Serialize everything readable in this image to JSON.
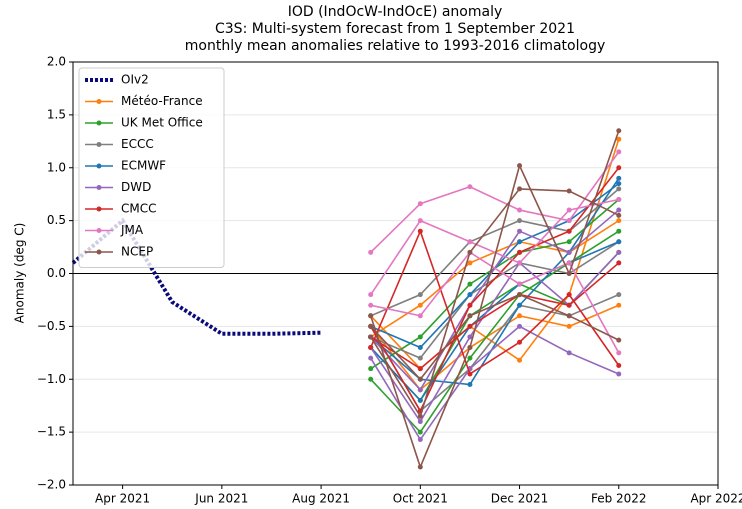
{
  "chart_data": {
    "type": "line",
    "title": "IOD (IndOcW-IndOcE) anomaly",
    "subtitle": "C3S: Multi-system forecast from 1 September 2021",
    "subtitle2": "monthly mean anomalies relative to 1993-2016 climatology",
    "ylabel": "Anomaly (deg C)",
    "xlim": [
      "2021-03",
      "2022-04"
    ],
    "xticks": [
      {
        "value": "2021-04",
        "label": "Apr 2021"
      },
      {
        "value": "2021-06",
        "label": "Jun 2021"
      },
      {
        "value": "2021-08",
        "label": "Aug 2021"
      },
      {
        "value": "2021-10",
        "label": "Oct 2021"
      },
      {
        "value": "2021-12",
        "label": "Dec 2021"
      },
      {
        "value": "2022-02",
        "label": "Feb 2022"
      },
      {
        "value": "2022-04",
        "label": "Apr 2022"
      }
    ],
    "ylim": [
      -2,
      2
    ],
    "yticks": [
      {
        "value": -2,
        "label": "−2.0"
      },
      {
        "value": -1.5,
        "label": "−1.5"
      },
      {
        "value": -1,
        "label": "−1.0"
      },
      {
        "value": -0.5,
        "label": "−0.5"
      },
      {
        "value": 0,
        "label": "0.0"
      },
      {
        "value": 0.5,
        "label": "0.5"
      },
      {
        "value": 1,
        "label": "1.0"
      },
      {
        "value": 1.5,
        "label": "1.5"
      },
      {
        "value": 2,
        "label": "2.0"
      }
    ],
    "grid": true,
    "legend": "upper left",
    "observations": {
      "name": "OIv2",
      "color": "#0a0a7a",
      "x": [
        "2021-03",
        "2021-04",
        "2021-05",
        "2021-06",
        "2021-07",
        "2021-08"
      ],
      "values": [
        0.1,
        0.5,
        -0.27,
        -0.57,
        -0.57,
        -0.56
      ]
    },
    "forecast_x": [
      "2021-09",
      "2021-10",
      "2021-11",
      "2021-12",
      "2022-01",
      "2022-02"
    ],
    "series": [
      {
        "name": "Météo-France",
        "color": "#ff7f0e",
        "members": [
          [
            -0.4,
            -0.9,
            -0.5,
            -0.82,
            -0.2,
            1.27
          ],
          [
            -0.6,
            -0.3,
            0.1,
            0.3,
            0.2,
            0.5
          ],
          [
            -0.5,
            -1.1,
            -0.7,
            -0.4,
            -0.5,
            -0.3
          ]
        ]
      },
      {
        "name": "UK Met Office",
        "color": "#2ca02c",
        "members": [
          [
            -1.0,
            -1.5,
            -0.8,
            -0.2,
            0.1,
            0.4
          ],
          [
            -0.9,
            -0.6,
            -0.1,
            0.2,
            0.3,
            0.7
          ],
          [
            -0.7,
            -1.2,
            -0.4,
            -0.1,
            -0.3,
            0.2
          ]
        ]
      },
      {
        "name": "ECCC",
        "color": "#7f7f7f",
        "members": [
          [
            -0.5,
            -1.3,
            -0.9,
            -0.3,
            -0.4,
            -0.2
          ],
          [
            -0.4,
            -0.2,
            0.3,
            0.5,
            0.4,
            0.8
          ],
          [
            -0.6,
            -0.8,
            -0.2,
            0.1,
            0.0,
            0.3
          ]
        ]
      },
      {
        "name": "ECMWF",
        "color": "#1f77b4",
        "members": [
          [
            -0.6,
            -1.0,
            -1.05,
            -0.3,
            0.2,
            0.9
          ],
          [
            -0.5,
            -0.7,
            -0.2,
            0.3,
            0.5,
            0.85
          ],
          [
            -0.7,
            -1.2,
            -0.5,
            -0.1,
            0.1,
            0.3
          ]
        ]
      },
      {
        "name": "DWD",
        "color": "#9467bd",
        "members": [
          [
            -0.8,
            -1.57,
            -0.9,
            -0.5,
            -0.75,
            -0.95
          ],
          [
            -0.7,
            -1.4,
            -0.6,
            0.1,
            -0.3,
            0.2
          ],
          [
            -0.6,
            -1.1,
            -0.3,
            0.4,
            0.2,
            0.6
          ]
        ]
      },
      {
        "name": "CMCC",
        "color": "#d62728",
        "members": [
          [
            -0.7,
            0.4,
            -0.95,
            -0.65,
            -0.2,
            -0.87
          ],
          [
            -0.5,
            -1.3,
            -0.3,
            0.2,
            0.4,
            1.0
          ],
          [
            -0.6,
            -0.9,
            -0.5,
            -0.2,
            -0.3,
            0.1
          ]
        ]
      },
      {
        "name": "JMA",
        "color": "#e377c2",
        "members": [
          [
            0.2,
            0.66,
            0.82,
            0.6,
            0.5,
            1.15
          ],
          [
            -0.2,
            0.5,
            0.3,
            0.1,
            0.6,
            0.7
          ],
          [
            -0.3,
            -0.4,
            0.2,
            -0.1,
            0.1,
            -0.75
          ]
        ]
      },
      {
        "name": "NCEP",
        "color": "#8c564b",
        "members": [
          [
            -0.4,
            -1.83,
            -0.7,
            1.02,
            0.0,
            1.35
          ],
          [
            -0.6,
            -1.35,
            0.2,
            0.8,
            0.78,
            0.55
          ],
          [
            -0.5,
            -1.0,
            -0.4,
            -0.2,
            -0.4,
            -0.63
          ]
        ]
      }
    ]
  }
}
